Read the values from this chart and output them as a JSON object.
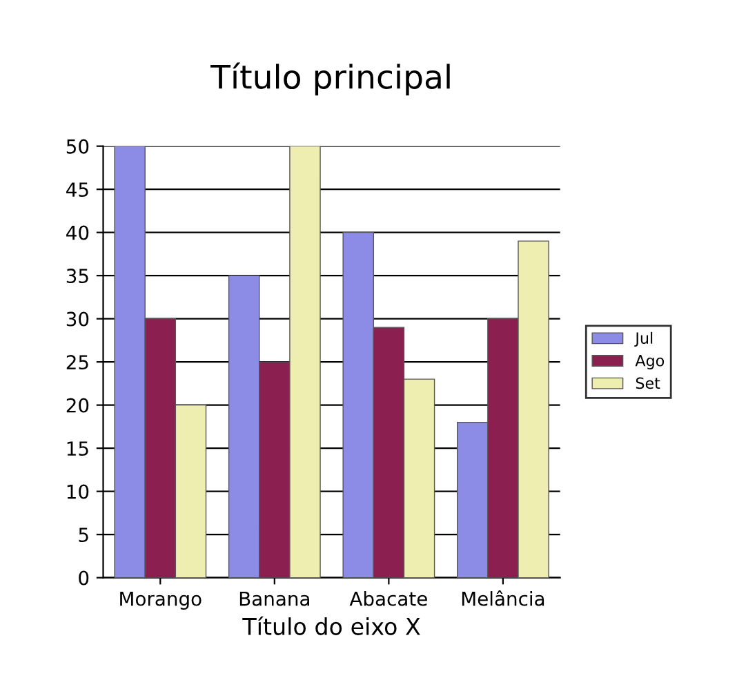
{
  "chart_data": {
    "type": "bar",
    "title": "Título principal",
    "xlabel": "Título do eixo X",
    "categories": [
      "Morango",
      "Banana",
      "Abacate",
      "Melância"
    ],
    "series": [
      {
        "name": "Jul",
        "color": "#8c8ce6",
        "values": [
          50,
          35,
          40,
          18
        ]
      },
      {
        "name": "Ago",
        "color": "#8b1f4f",
        "values": [
          30,
          25,
          29,
          30
        ]
      },
      {
        "name": "Set",
        "color": "#eeeeb0",
        "values": [
          20,
          50,
          23,
          39
        ]
      }
    ],
    "ylim": [
      0,
      50
    ],
    "yticks": [
      0,
      5,
      10,
      15,
      20,
      25,
      30,
      35,
      40,
      45,
      50
    ],
    "grid": "y",
    "legend": "right"
  }
}
